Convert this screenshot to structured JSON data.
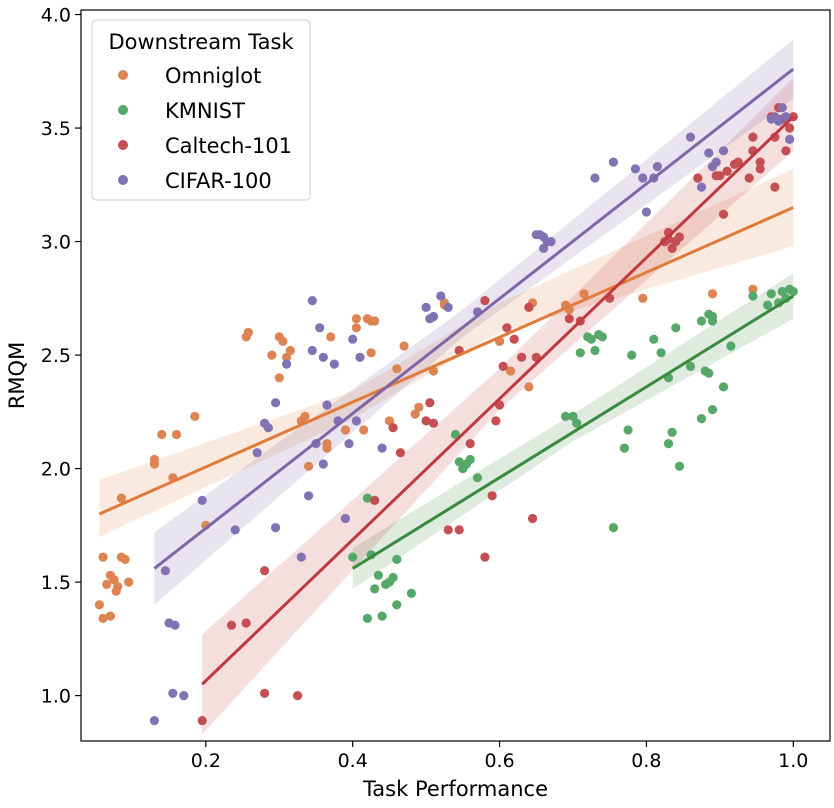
{
  "chart_data": {
    "type": "scatter",
    "xlabel": "Task Performance",
    "ylabel": "RMQM",
    "xlim": [
      0.03,
      1.05
    ],
    "ylim": [
      0.8,
      4.02
    ],
    "xticks": [
      0.2,
      0.4,
      0.6,
      0.8,
      1.0
    ],
    "xtick_labels": [
      "0.2",
      "0.4",
      "0.6",
      "0.8",
      "1.0"
    ],
    "yticks": [
      1.0,
      1.5,
      2.0,
      2.5,
      3.0,
      3.5,
      4.0
    ],
    "ytick_labels": [
      "1.0",
      "1.5",
      "2.0",
      "2.5",
      "3.0",
      "3.5",
      "4.0"
    ],
    "grid": false,
    "legend": {
      "title": "Downstream Task",
      "placement": "top-left"
    },
    "series": [
      {
        "name": "Omniglot",
        "color": "#dd8452",
        "line_color": "#e07b39",
        "fit": {
          "x": [
            0.055,
            1.0
          ],
          "y": [
            1.8,
            3.15
          ]
        },
        "band": {
          "x": [
            0.055,
            0.4,
            0.6,
            1.0
          ],
          "lower": [
            1.7,
            2.22,
            2.6,
            2.98
          ],
          "upper": [
            1.95,
            2.34,
            2.73,
            3.32
          ]
        },
        "points": [
          [
            0.055,
            1.4
          ],
          [
            0.06,
            1.61
          ],
          [
            0.06,
            1.34
          ],
          [
            0.065,
            1.49
          ],
          [
            0.07,
            1.53
          ],
          [
            0.07,
            1.35
          ],
          [
            0.075,
            1.51
          ],
          [
            0.078,
            1.46
          ],
          [
            0.08,
            1.48
          ],
          [
            0.085,
            1.61
          ],
          [
            0.085,
            1.87
          ],
          [
            0.09,
            1.6
          ],
          [
            0.095,
            1.5
          ],
          [
            0.13,
            2.02
          ],
          [
            0.13,
            2.04
          ],
          [
            0.14,
            2.15
          ],
          [
            0.155,
            1.96
          ],
          [
            0.16,
            2.15
          ],
          [
            0.185,
            2.23
          ],
          [
            0.2,
            1.75
          ],
          [
            0.255,
            2.58
          ],
          [
            0.258,
            2.6
          ],
          [
            0.29,
            2.5
          ],
          [
            0.3,
            2.58
          ],
          [
            0.3,
            2.4
          ],
          [
            0.305,
            2.56
          ],
          [
            0.31,
            2.49
          ],
          [
            0.315,
            2.52
          ],
          [
            0.33,
            2.21
          ],
          [
            0.335,
            2.23
          ],
          [
            0.34,
            2.01
          ],
          [
            0.365,
            2.11
          ],
          [
            0.365,
            2.09
          ],
          [
            0.37,
            2.58
          ],
          [
            0.39,
            2.17
          ],
          [
            0.405,
            2.66
          ],
          [
            0.405,
            2.62
          ],
          [
            0.415,
            2.17
          ],
          [
            0.42,
            2.66
          ],
          [
            0.425,
            2.65
          ],
          [
            0.425,
            2.51
          ],
          [
            0.43,
            2.65
          ],
          [
            0.45,
            2.21
          ],
          [
            0.46,
            2.44
          ],
          [
            0.47,
            2.54
          ],
          [
            0.485,
            2.24
          ],
          [
            0.49,
            2.27
          ],
          [
            0.51,
            2.43
          ],
          [
            0.525,
            2.72
          ],
          [
            0.525,
            2.73
          ],
          [
            0.6,
            2.56
          ],
          [
            0.615,
            2.43
          ],
          [
            0.64,
            2.36
          ],
          [
            0.645,
            2.73
          ],
          [
            0.69,
            2.72
          ],
          [
            0.695,
            2.7
          ],
          [
            0.715,
            2.77
          ],
          [
            0.795,
            2.75
          ],
          [
            0.89,
            2.77
          ],
          [
            0.945,
            2.79
          ]
        ]
      },
      {
        "name": "KMNIST",
        "color": "#55a868",
        "line_color": "#3a8a3d",
        "fit": {
          "x": [
            0.4,
            1.0
          ],
          "y": [
            1.56,
            2.76
          ]
        },
        "band": {
          "x": [
            0.4,
            0.7,
            1.0
          ],
          "lower": [
            1.47,
            2.12,
            2.66
          ],
          "upper": [
            1.65,
            2.24,
            2.86
          ]
        },
        "points": [
          [
            0.4,
            1.61
          ],
          [
            0.42,
            1.87
          ],
          [
            0.42,
            1.34
          ],
          [
            0.425,
            1.62
          ],
          [
            0.43,
            1.47
          ],
          [
            0.435,
            1.53
          ],
          [
            0.44,
            1.35
          ],
          [
            0.445,
            1.49
          ],
          [
            0.45,
            1.5
          ],
          [
            0.455,
            1.52
          ],
          [
            0.46,
            1.4
          ],
          [
            0.46,
            1.6
          ],
          [
            0.48,
            1.45
          ],
          [
            0.54,
            2.15
          ],
          [
            0.545,
            2.03
          ],
          [
            0.55,
            2.0
          ],
          [
            0.555,
            2.02
          ],
          [
            0.56,
            2.04
          ],
          [
            0.57,
            1.96
          ],
          [
            0.69,
            2.23
          ],
          [
            0.7,
            2.23
          ],
          [
            0.705,
            2.2
          ],
          [
            0.71,
            2.51
          ],
          [
            0.72,
            2.58
          ],
          [
            0.725,
            2.57
          ],
          [
            0.73,
            2.52
          ],
          [
            0.735,
            2.59
          ],
          [
            0.74,
            2.58
          ],
          [
            0.755,
            1.74
          ],
          [
            0.77,
            2.09
          ],
          [
            0.775,
            2.17
          ],
          [
            0.78,
            2.5
          ],
          [
            0.81,
            2.57
          ],
          [
            0.82,
            2.51
          ],
          [
            0.83,
            2.11
          ],
          [
            0.83,
            2.4
          ],
          [
            0.835,
            2.16
          ],
          [
            0.84,
            2.62
          ],
          [
            0.845,
            2.01
          ],
          [
            0.86,
            2.45
          ],
          [
            0.875,
            2.65
          ],
          [
            0.875,
            2.22
          ],
          [
            0.88,
            2.43
          ],
          [
            0.885,
            2.42
          ],
          [
            0.885,
            2.68
          ],
          [
            0.89,
            2.26
          ],
          [
            0.89,
            2.65
          ],
          [
            0.89,
            2.67
          ],
          [
            0.905,
            2.36
          ],
          [
            0.915,
            2.54
          ],
          [
            0.945,
            2.76
          ],
          [
            0.965,
            2.72
          ],
          [
            0.97,
            2.77
          ],
          [
            0.98,
            2.73
          ],
          [
            0.985,
            2.78
          ],
          [
            0.99,
            2.75
          ],
          [
            0.995,
            2.79
          ],
          [
            1.0,
            2.78
          ]
        ]
      },
      {
        "name": "Caltech-101",
        "color": "#c44e52",
        "line_color": "#c0393e",
        "fit": {
          "x": [
            0.195,
            1.0
          ],
          "y": [
            1.05,
            3.55
          ]
        },
        "band": {
          "x": [
            0.195,
            0.6,
            1.0
          ],
          "lower": [
            0.83,
            2.26,
            3.4
          ],
          "upper": [
            1.27,
            2.44,
            3.72
          ]
        },
        "points": [
          [
            0.195,
            0.89
          ],
          [
            0.235,
            1.31
          ],
          [
            0.255,
            1.32
          ],
          [
            0.28,
            1.55
          ],
          [
            0.28,
            1.01
          ],
          [
            0.325,
            1.0
          ],
          [
            0.43,
            1.86
          ],
          [
            0.455,
            2.18
          ],
          [
            0.465,
            2.07
          ],
          [
            0.5,
            2.21
          ],
          [
            0.505,
            2.29
          ],
          [
            0.51,
            2.2
          ],
          [
            0.53,
            1.73
          ],
          [
            0.545,
            2.52
          ],
          [
            0.545,
            1.73
          ],
          [
            0.56,
            2.11
          ],
          [
            0.58,
            2.74
          ],
          [
            0.58,
            1.61
          ],
          [
            0.59,
            1.88
          ],
          [
            0.595,
            2.21
          ],
          [
            0.6,
            2.28
          ],
          [
            0.605,
            2.45
          ],
          [
            0.61,
            2.62
          ],
          [
            0.62,
            2.57
          ],
          [
            0.63,
            2.49
          ],
          [
            0.64,
            2.71
          ],
          [
            0.645,
            1.78
          ],
          [
            0.65,
            2.49
          ],
          [
            0.695,
            2.66
          ],
          [
            0.71,
            2.65
          ],
          [
            0.75,
            2.75
          ],
          [
            0.825,
            3.0
          ],
          [
            0.83,
            3.01
          ],
          [
            0.83,
            3.04
          ],
          [
            0.835,
            2.97
          ],
          [
            0.84,
            3.0
          ],
          [
            0.845,
            3.02
          ],
          [
            0.87,
            3.28
          ],
          [
            0.895,
            3.29
          ],
          [
            0.9,
            3.29
          ],
          [
            0.905,
            3.12
          ],
          [
            0.91,
            3.31
          ],
          [
            0.92,
            3.34
          ],
          [
            0.925,
            3.35
          ],
          [
            0.94,
            3.28
          ],
          [
            0.945,
            3.46
          ],
          [
            0.945,
            3.4
          ],
          [
            0.955,
            3.35
          ],
          [
            0.955,
            3.32
          ],
          [
            0.97,
            3.55
          ],
          [
            0.975,
            3.46
          ],
          [
            0.975,
            3.24
          ],
          [
            0.98,
            3.59
          ],
          [
            0.985,
            3.54
          ],
          [
            0.99,
            3.4
          ],
          [
            0.995,
            3.5
          ],
          [
            1.0,
            3.55
          ]
        ]
      },
      {
        "name": "CIFAR-100",
        "color": "#8172b3",
        "line_color": "#7e66a8",
        "fit": {
          "x": [
            0.13,
            1.0
          ],
          "y": [
            1.56,
            3.76
          ]
        },
        "band": {
          "x": [
            0.13,
            0.55,
            1.0
          ],
          "lower": [
            1.4,
            2.58,
            3.63
          ],
          "upper": [
            1.72,
            2.7,
            3.89
          ]
        },
        "points": [
          [
            0.13,
            0.89
          ],
          [
            0.145,
            1.55
          ],
          [
            0.15,
            1.32
          ],
          [
            0.155,
            1.01
          ],
          [
            0.158,
            1.31
          ],
          [
            0.17,
            1.0
          ],
          [
            0.195,
            1.86
          ],
          [
            0.24,
            1.73
          ],
          [
            0.27,
            2.07
          ],
          [
            0.28,
            2.2
          ],
          [
            0.285,
            2.18
          ],
          [
            0.295,
            1.74
          ],
          [
            0.295,
            2.29
          ],
          [
            0.31,
            2.46
          ],
          [
            0.33,
            1.61
          ],
          [
            0.34,
            1.88
          ],
          [
            0.345,
            2.52
          ],
          [
            0.345,
            2.74
          ],
          [
            0.35,
            2.11
          ],
          [
            0.355,
            2.62
          ],
          [
            0.36,
            2.49
          ],
          [
            0.36,
            2.02
          ],
          [
            0.365,
            2.28
          ],
          [
            0.375,
            2.46
          ],
          [
            0.38,
            2.21
          ],
          [
            0.39,
            1.78
          ],
          [
            0.395,
            2.11
          ],
          [
            0.4,
            2.57
          ],
          [
            0.405,
            2.21
          ],
          [
            0.41,
            2.49
          ],
          [
            0.44,
            2.09
          ],
          [
            0.5,
            2.71
          ],
          [
            0.505,
            2.66
          ],
          [
            0.51,
            2.67
          ],
          [
            0.52,
            2.76
          ],
          [
            0.53,
            2.71
          ],
          [
            0.57,
            2.69
          ],
          [
            0.65,
            3.03
          ],
          [
            0.655,
            3.03
          ],
          [
            0.66,
            3.02
          ],
          [
            0.66,
            2.97
          ],
          [
            0.665,
            3.0
          ],
          [
            0.67,
            3.0
          ],
          [
            0.73,
            3.28
          ],
          [
            0.755,
            3.35
          ],
          [
            0.785,
            3.32
          ],
          [
            0.795,
            3.28
          ],
          [
            0.8,
            3.13
          ],
          [
            0.81,
            3.28
          ],
          [
            0.815,
            3.33
          ],
          [
            0.86,
            3.46
          ],
          [
            0.875,
            3.24
          ],
          [
            0.885,
            3.39
          ],
          [
            0.89,
            3.33
          ],
          [
            0.895,
            3.35
          ],
          [
            0.905,
            3.4
          ],
          [
            0.97,
            3.54
          ],
          [
            0.975,
            3.55
          ],
          [
            0.98,
            3.53
          ],
          [
            0.985,
            3.59
          ],
          [
            0.99,
            3.55
          ],
          [
            0.995,
            3.45
          ]
        ]
      }
    ]
  }
}
